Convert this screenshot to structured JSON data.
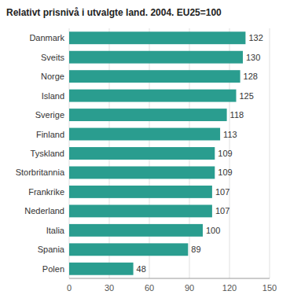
{
  "chart_data": {
    "type": "bar",
    "orientation": "horizontal",
    "title": "Relativt prisnivå i utvalgte land. 2004. EU25=100",
    "categories": [
      "Danmark",
      "Sveits",
      "Norge",
      "Island",
      "Sverige",
      "Finland",
      "Tyskland",
      "Storbritannia",
      "Frankrike",
      "Nederland",
      "Italia",
      "Spania",
      "Polen"
    ],
    "values": [
      132,
      130,
      128,
      125,
      118,
      113,
      109,
      109,
      107,
      107,
      100,
      89,
      48
    ],
    "color": "#2a9d8f",
    "xlim": [
      0,
      150
    ],
    "xticks": [
      0,
      30,
      60,
      90,
      120,
      150
    ],
    "grid": true,
    "data_labels": true
  }
}
